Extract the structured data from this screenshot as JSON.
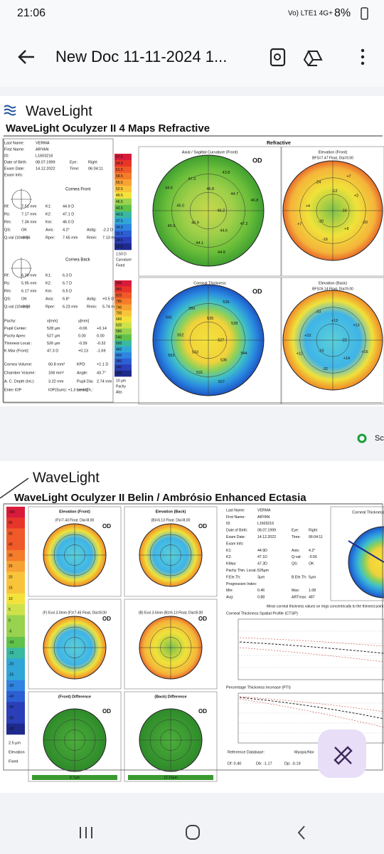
{
  "status_bar": {
    "time": "21:06",
    "network": "Vo) LTE1 4G+",
    "battery": "8%"
  },
  "app_bar": {
    "title": "New Doc 11-11-2024 1..."
  },
  "page1": {
    "logo": "WaveLight",
    "title": "WaveLight Oculyzer II  4 Maps Refractive",
    "section": "Refractive",
    "patient": [
      [
        "Last Name:",
        "VERMA"
      ],
      [
        "First Name:",
        "ARYAN"
      ],
      [
        "ID:",
        "L1603216"
      ],
      [
        "Date of Birth:",
        "08.07.1999",
        "Eye:",
        "Right"
      ],
      [
        "Exam Date:",
        "14.12.2022",
        "Time:",
        "06:04:11"
      ],
      [
        "Exam Info:"
      ]
    ],
    "cornea_front": {
      "heading": "Cornea Front",
      "rows": [
        [
          "Rf:",
          "7.51 mm",
          "K1:",
          "44.9 D"
        ],
        [
          "Rs:",
          "7.17 mm",
          "K2:",
          "47.1 D"
        ],
        [
          "Rm:",
          "7.34 mm",
          "Km:",
          "46.0 D"
        ],
        [
          "QS:",
          "OK",
          "Axis:",
          "4.2°",
          "Astig:",
          "-2.2 D"
        ],
        [
          "Q-val (10mm):",
          "-0.56",
          "Rper:",
          "7.65 mm",
          "Rmin:",
          "7.13 mm"
        ]
      ]
    },
    "cornea_back": {
      "heading": "Cornea Back",
      "rows": [
        [
          "Rf:",
          "6.39 mm",
          "K1:",
          "6.3 D"
        ],
        [
          "Rs:",
          "5.95 mm",
          "K2:",
          "6.7 D"
        ],
        [
          "Rm:",
          "6.17 mm",
          "Km:",
          "6.5 D"
        ],
        [
          "QS:",
          "OK",
          "Axis:",
          "6.8°",
          "Astig:",
          "+0.5 D"
        ],
        [
          "Q-val (10mm):",
          "-0.68",
          "Rper:",
          "6.23 mm",
          "Rmin:",
          "5.74 mm"
        ]
      ]
    },
    "pachy": [
      [
        "Pachy:",
        "x[mm]",
        "y[mm]"
      ],
      [
        "Pupil Center:",
        "528 µm",
        "-0.06",
        "+0.14"
      ],
      [
        "Pachy Apex:",
        "527 µm",
        "0.00",
        "0.00"
      ],
      [
        "Thinnest Locat.:",
        "526 µm",
        "-0.39",
        "-0.32"
      ],
      [
        "K Max (Front):",
        "47.3 D",
        "+0.13",
        "-1.69"
      ]
    ],
    "other": [
      [
        "Cornea Volume:",
        "60.8 mm³",
        "KPD:",
        "+1.1 D"
      ],
      [
        "Chamber Volume:",
        "168 mm³",
        "Angle:",
        "43.7°"
      ],
      [
        "A. C. Depth (Int.):",
        "3.22 mm",
        "Pupil Dia:",
        "2.74 mm"
      ],
      [
        "Enter IOP",
        "IOP(Sum): +1.3 mmHg",
        "Lens Th.:"
      ]
    ],
    "scale_curvature": [
      "67.5",
      "64.5",
      "61.5",
      "58.5",
      "55.5",
      "52.5",
      "49.5",
      "46.5",
      "43.5",
      "40.5",
      "37.5",
      "34.5",
      "31.5",
      "28.5",
      "25.5",
      "1.50 D",
      "Curvature",
      "Fixed"
    ],
    "scale_pachy": [
      "900",
      "860",
      "820",
      "780",
      "740",
      "700",
      "660",
      "620",
      "580",
      "540",
      "500",
      "460",
      "420",
      "380",
      "340",
      "300",
      "10 µm",
      "Pachy",
      "Abs"
    ],
    "maps": [
      {
        "title": "Axial / Sagittal Curvature (Front)",
        "eye": "OD",
        "labels": [
          "46.2",
          "46.9",
          "46.8",
          "44.6",
          "45.0",
          "44.7",
          "44.1",
          "47.3",
          "47.2",
          "45.9",
          "43.8",
          "44.8",
          "44.6",
          "46.8"
        ]
      },
      {
        "title": "Elevation (Front)",
        "subtitle": "BFS=7.47 Float, Dia=9.00",
        "labels": [
          "-16",
          "-20",
          "-12",
          "+9",
          "+4",
          "+2",
          "-16",
          "-24",
          "-20",
          "+7",
          "+7"
        ]
      },
      {
        "title": "Corneal Thickness",
        "eye": "OD",
        "labels": [
          "527",
          "533",
          "535",
          "536",
          "552",
          "528",
          "531",
          "550",
          "544",
          "552",
          "526",
          "527",
          "541"
        ]
      },
      {
        "title": "Elevation (Back)",
        "subtitle": "BFS=6.14 Float, Dia=9.00",
        "labels": [
          "-22",
          "-19",
          "+13",
          "+14",
          "+22",
          "+13",
          "-32",
          "-33",
          "+16",
          "+12"
        ]
      }
    ]
  },
  "scan_button": "Sca",
  "page2": {
    "logo": "WaveLight",
    "title": "WaveLight Oculyzer II  Belin / Ambrósio Enhanced Ectasia",
    "scale": [
      "+80",
      "65",
      "50",
      "40",
      "30",
      "25",
      "20",
      "15",
      "10",
      "5",
      "0",
      "-5",
      "-10",
      "-15",
      "-20",
      "-25",
      "-30",
      "-40",
      "-50",
      "-65",
      "-80",
      "2.5 µm",
      "Elevation",
      "Fixed"
    ],
    "maps": [
      {
        "title": "Elevation (Front)",
        "subtitle": "(F)=7.43 Float, Dia=8.00",
        "eye": "OD"
      },
      {
        "title": "Elevation (Back)",
        "subtitle": "(B)=6.13 Float, Dia=8.00",
        "eye": "OD"
      },
      {
        "subtitle": "(F) Excl.3.0mm (F)=7.45 Float, Dia=8.00",
        "eye": "OD"
      },
      {
        "subtitle": "(B) Excl.3.5mm (B)=6.13 Float, Dia=8.00",
        "eye": "OD"
      },
      {
        "title": "(Front) Difference",
        "eye": "OD",
        "legend": "5.7µm"
      },
      {
        "title": "(Back) Difference",
        "eye": "OD",
        "legend": "12.16µm"
      }
    ],
    "patient": [
      [
        "Last Name:",
        "VERMA"
      ],
      [
        "First Name:",
        "ARYAN"
      ],
      [
        "ID:",
        "L1603216"
      ],
      [
        "Date of Birth:",
        "08.07.1999",
        "Eye:",
        "Right"
      ],
      [
        "Exam Date:",
        "14.12.2022",
        "Time:",
        "06:04:11"
      ],
      [
        "Exam Info:"
      ],
      [
        "K1:",
        "44.9D",
        "Axis:",
        "4.2°"
      ],
      [
        "K2:",
        "47.1D",
        "Q-val:",
        "-0.56"
      ],
      [
        "KMax:",
        "47.3D",
        "QS:",
        "OK"
      ],
      [
        "Pachy Thin. Locat.:",
        "526µm"
      ],
      [
        "F.Ele.Th:",
        "3µm",
        "B.Ele.Th:",
        "5µm"
      ],
      [
        "Progression Index:"
      ],
      [
        "Min:",
        "0.46",
        "Max:",
        "1.08"
      ],
      [
        "Avg:",
        "0.88",
        "ARTmax:",
        "487"
      ]
    ],
    "thickness_map_title": "Corneal Thickness",
    "rings_note": "Mean corneal thickness values on rings concentrically to the thinnest point",
    "ctsp_title": "Corneal Thickness Spatial Profile (CTSP)",
    "pti_title": "Percentage Thickness Increase (PTI)",
    "reference": "Reference Database:",
    "reference_option": "Myopic/Nor",
    "d_values": [
      "Df: 0.40",
      "Db: -1.17",
      "Dp: -0.19"
    ]
  }
}
